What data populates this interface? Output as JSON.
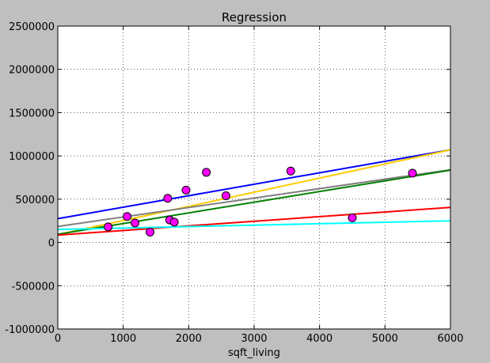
{
  "chart_data": {
    "type": "scatter",
    "title": "Regression",
    "xlabel": "sqft_living",
    "ylabel": "",
    "xlim": [
      0,
      6000
    ],
    "ylim": [
      -1000000,
      2500000
    ],
    "xticks": [
      0,
      1000,
      2000,
      3000,
      4000,
      5000,
      6000
    ],
    "yticks": [
      -1000000,
      -500000,
      0,
      500000,
      1000000,
      1500000,
      2000000,
      2500000
    ],
    "grid": true,
    "background": "#bfbfbf",
    "plot_background": "#ffffff",
    "points": {
      "color": "#ff00ff",
      "edge_color": "#000000",
      "x": [
        770,
        1060,
        1180,
        1410,
        1680,
        1710,
        1780,
        1960,
        2270,
        2570,
        3560,
        4500,
        5420
      ],
      "y": [
        180000,
        300000,
        225000,
        120000,
        510000,
        260000,
        235000,
        605000,
        810000,
        540000,
        825000,
        285000,
        800000
      ]
    },
    "lines": [
      {
        "color": "#0000ff",
        "x": [
          0,
          6000
        ],
        "y": [
          275000,
          1070000
        ]
      },
      {
        "color": "#ffcc00",
        "x": [
          0,
          6000
        ],
        "y": [
          90000,
          1070000
        ]
      },
      {
        "color": "#808080",
        "x": [
          0,
          6000
        ],
        "y": [
          185000,
          840000
        ]
      },
      {
        "color": "#008000",
        "x": [
          0,
          6000
        ],
        "y": [
          95000,
          835000
        ]
      },
      {
        "color": "#ff0000",
        "x": [
          0,
          6000
        ],
        "y": [
          85000,
          405000
        ]
      },
      {
        "color": "#00ffff",
        "x": [
          0,
          6000
        ],
        "y": [
          150000,
          250000
        ]
      }
    ]
  }
}
